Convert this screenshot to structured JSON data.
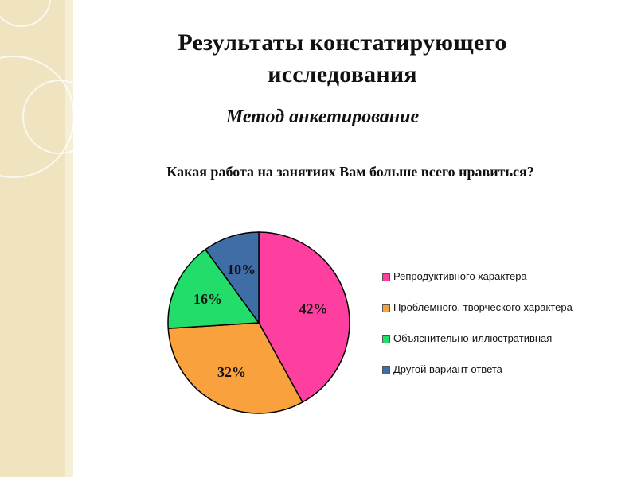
{
  "slide": {
    "title_line1": "Результаты констатирующего",
    "title_line2": "исследования",
    "subtitle": "Метод анкетирование",
    "question": "Какая работа на занятиях Вам больше всего нравиться?"
  },
  "chart_data": {
    "type": "pie",
    "title": "",
    "legend_placement": "right",
    "slices": [
      {
        "name": "Репродуктивного характера",
        "value": 42,
        "label": "42%",
        "color": "#ff3fa0"
      },
      {
        "name": "Проблемного, творческого характера",
        "value": 32,
        "label": "32%",
        "color": "#f9a13d"
      },
      {
        "name": "Объяснительно-иллюстративная",
        "value": 16,
        "label": "16%",
        "color": "#22dd6a"
      },
      {
        "name": "Другой вариант ответа",
        "value": 10,
        "label": "10%",
        "color": "#3f6ea6"
      }
    ]
  }
}
